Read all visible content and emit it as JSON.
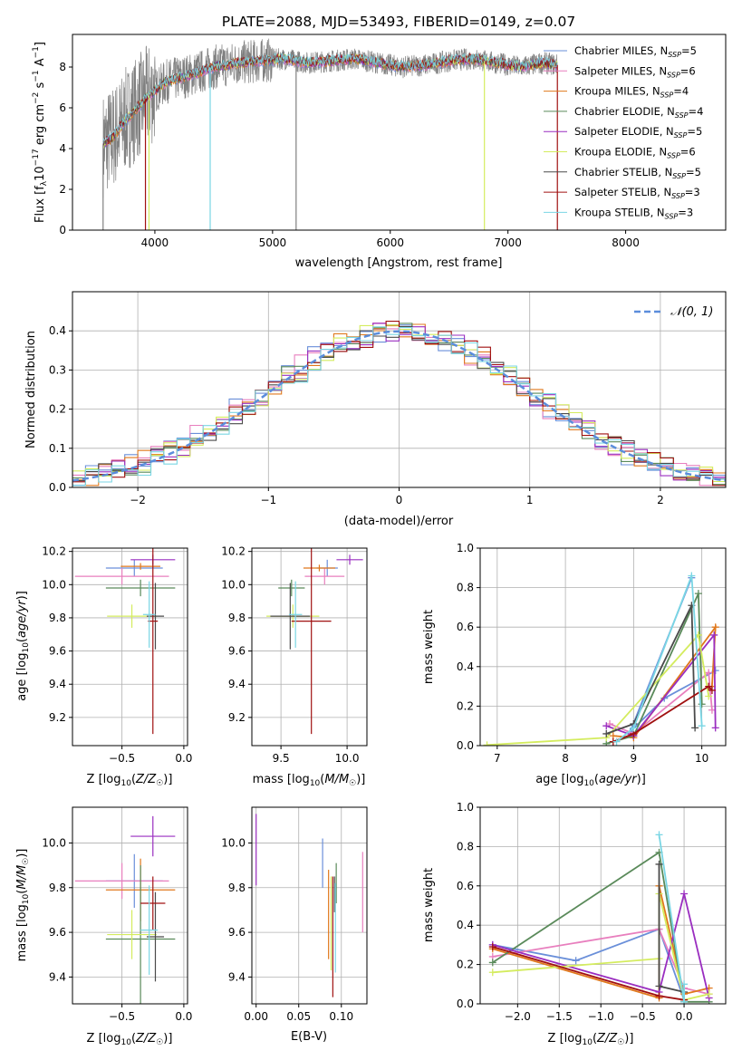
{
  "figure": {
    "title": "PLATE=2088, MJD=53493, FIBERID=0149, z=0.07"
  },
  "colors": {
    "Chabrier MILES": "#6a8fd9",
    "Salpeter MILES": "#e87fbe",
    "Kroupa MILES": "#e0781c",
    "Chabrier ELODIE": "#5a8a5a",
    "Salpeter ELODIE": "#9a2ec0",
    "Kroupa ELODIE": "#d4ec5e",
    "Chabrier STELIB": "#4a4a4a",
    "Salpeter STELIB": "#a01010",
    "Kroupa STELIB": "#7ad6e4",
    "data": "#808080",
    "normal_curve": "#5b8ddb",
    "grid": "#b0b0b0"
  },
  "chart_data": [
    {
      "id": "spectrum",
      "type": "line",
      "title": "PLATE=2088, MJD=53493, FIBERID=0149, z=0.07",
      "xlabel": "wavelength [Angstrom, rest frame]",
      "ylabel": "Flux [f_λ 10^-17 erg cm^-2 s^-1 A^-1]",
      "xlim": [
        3300,
        8850
      ],
      "ylim": [
        0,
        9.6
      ],
      "xticks": [
        4000,
        5000,
        6000,
        7000,
        8000
      ],
      "yticks": [
        0,
        2,
        4,
        6,
        8
      ],
      "grid": false,
      "legend_position": "top-right",
      "continuum": {
        "x": [
          3560,
          3650,
          3750,
          3850,
          3950,
          4100,
          4300,
          4500,
          4700,
          4900,
          5100,
          5300,
          5500,
          5700,
          5900,
          6100,
          6300,
          6500,
          6700,
          6900,
          7100,
          7300,
          7420
        ],
        "y": [
          4.2,
          4.6,
          5.4,
          6.0,
          6.6,
          7.3,
          7.6,
          8.0,
          8.2,
          8.3,
          8.4,
          8.2,
          8.3,
          8.4,
          8.2,
          8.0,
          8.1,
          8.3,
          8.4,
          8.2,
          8.0,
          8.2,
          8.1
        ]
      },
      "series": [
        {
          "name": "Chabrier MILES",
          "nssp": 5
        },
        {
          "name": "Salpeter MILES",
          "nssp": 6
        },
        {
          "name": "Kroupa MILES",
          "nssp": 4
        },
        {
          "name": "Chabrier ELODIE",
          "nssp": 4
        },
        {
          "name": "Salpeter ELODIE",
          "nssp": 5
        },
        {
          "name": "Kroupa ELODIE",
          "nssp": 6
        },
        {
          "name": "Chabrier STELIB",
          "nssp": 5
        },
        {
          "name": "Salpeter STELIB",
          "nssp": 3
        },
        {
          "name": "Kroupa STELIB",
          "nssp": 3
        }
      ],
      "dips": [
        {
          "x": 3560,
          "series": "data"
        },
        {
          "x": 3920,
          "series": "Salpeter STELIB"
        },
        {
          "x": 3950,
          "series": "Kroupa ELODIE"
        },
        {
          "x": 4470,
          "series": "Kroupa STELIB"
        },
        {
          "x": 5200,
          "series": "data"
        },
        {
          "x": 6800,
          "series": "Kroupa ELODIE"
        },
        {
          "x": 7420,
          "series": "Salpeter STELIB"
        }
      ]
    },
    {
      "id": "residuals",
      "type": "histogram",
      "xlabel": "(data-model)/error",
      "ylabel": "Normed distribution",
      "xlim": [
        -2.5,
        2.5
      ],
      "ylim": [
        0,
        0.5
      ],
      "xticks": [
        -2,
        -1,
        0,
        1,
        2
      ],
      "yticks": [
        0.0,
        0.1,
        0.2,
        0.3,
        0.4
      ],
      "grid": true,
      "bin_width": 0.1,
      "legend_position": "top-right",
      "curve_label": "N(0,1)"
    },
    {
      "id": "age-vs-Z",
      "type": "scatter",
      "xlabel": "Z [log10(Z/Z☉)]",
      "ylabel": "age  [log10(age/yr)]",
      "xlim": [
        -0.9,
        0.03
      ],
      "ylim": [
        9.03,
        10.22
      ],
      "xticks": [
        -0.5,
        0.0
      ],
      "yticks": [
        9.2,
        9.4,
        9.6,
        9.8,
        10.0,
        10.2
      ],
      "grid": true,
      "points": [
        {
          "series": "Chabrier MILES",
          "x": -0.4,
          "y": 10.1,
          "xerr": 0.23,
          "yerr": 0.05
        },
        {
          "series": "Salpeter MILES",
          "x": -0.5,
          "y": 10.05,
          "xerr": 0.38,
          "yerr": 0.05
        },
        {
          "series": "Kroupa MILES",
          "x": -0.35,
          "y": 10.11,
          "xerr": 0.16,
          "yerr": 0.02
        },
        {
          "series": "Chabrier ELODIE",
          "x": -0.35,
          "y": 9.98,
          "xerr": 0.28,
          "yerr": 0.05
        },
        {
          "series": "Salpeter ELODIE",
          "x": -0.25,
          "y": 10.15,
          "xerr": 0.18,
          "yerr": 0.03
        },
        {
          "series": "Kroupa ELODIE",
          "x": -0.42,
          "y": 9.81,
          "xerr": 0.2,
          "yerr": 0.07
        },
        {
          "series": "Chabrier STELIB",
          "x": -0.23,
          "y": 9.81,
          "xerr": 0.07,
          "yerr": 0.2
        },
        {
          "series": "Salpeter STELIB",
          "x": -0.25,
          "y": 9.78,
          "xerr": 0.04,
          "yerr": 0.68
        },
        {
          "series": "Kroupa STELIB",
          "x": -0.28,
          "y": 9.82,
          "xerr": 0.05,
          "yerr": 0.2
        }
      ]
    },
    {
      "id": "age-vs-mass",
      "type": "scatter",
      "xlabel": "mass [log10(M/M☉)]",
      "ylabel": "",
      "xlim": [
        9.28,
        10.15
      ],
      "ylim": [
        9.03,
        10.22
      ],
      "xticks": [
        9.5,
        10.0
      ],
      "yticks": [
        9.2,
        9.4,
        9.6,
        9.8,
        10.0,
        10.2
      ],
      "grid": true,
      "points": [
        {
          "series": "Chabrier MILES",
          "x": 9.85,
          "y": 10.1,
          "xerr": 0.08,
          "yerr": 0.05
        },
        {
          "series": "Salpeter MILES",
          "x": 9.83,
          "y": 10.05,
          "xerr": 0.15,
          "yerr": 0.05
        },
        {
          "series": "Kroupa MILES",
          "x": 9.79,
          "y": 10.1,
          "xerr": 0.12,
          "yerr": 0.02
        },
        {
          "series": "Chabrier ELODIE",
          "x": 9.58,
          "y": 9.98,
          "xerr": 0.1,
          "yerr": 0.05
        },
        {
          "series": "Salpeter ELODIE",
          "x": 10.02,
          "y": 10.15,
          "xerr": 0.1,
          "yerr": 0.03
        },
        {
          "series": "Kroupa ELODIE",
          "x": 9.59,
          "y": 9.81,
          "xerr": 0.2,
          "yerr": 0.07
        },
        {
          "series": "Chabrier STELIB",
          "x": 9.57,
          "y": 9.81,
          "xerr": 0.15,
          "yerr": 0.2
        },
        {
          "series": "Salpeter STELIB",
          "x": 9.73,
          "y": 9.78,
          "xerr": 0.15,
          "yerr": 0.68
        },
        {
          "series": "Kroupa STELIB",
          "x": 9.61,
          "y": 9.82,
          "xerr": 0.05,
          "yerr": 0.2
        }
      ]
    },
    {
      "id": "weight-vs-age",
      "type": "line",
      "xlabel": "age  [log10(age/yr)]",
      "ylabel": "mass weight",
      "xlim": [
        6.75,
        10.35
      ],
      "ylim": [
        0,
        1.0
      ],
      "xticks": [
        7,
        8,
        9,
        10
      ],
      "yticks": [
        0.0,
        0.2,
        0.4,
        0.6,
        0.8,
        1.0
      ],
      "grid": true,
      "series": [
        {
          "name": "Chabrier MILES",
          "x": [
            9.85,
            8.95,
            9.45,
            10.2
          ],
          "y": [
            0.85,
            0.07,
            0.24,
            0.38
          ]
        },
        {
          "name": "Salpeter MILES",
          "x": [
            8.65,
            9.0,
            10.1,
            10.15
          ],
          "y": [
            0.11,
            0.06,
            0.37,
            0.18
          ]
        },
        {
          "name": "Kroupa MILES",
          "x": [
            8.7,
            9.0,
            10.2,
            10.15
          ],
          "y": [
            0.05,
            0.04,
            0.6,
            0.3
          ]
        },
        {
          "name": "Chabrier ELODIE",
          "x": [
            8.6,
            9.0,
            9.95,
            10.0
          ],
          "y": [
            0.01,
            0.05,
            0.77,
            0.21
          ]
        },
        {
          "name": "Salpeter ELODIE",
          "x": [
            8.6,
            9.0,
            10.18,
            10.2
          ],
          "y": [
            0.1,
            0.05,
            0.56,
            0.09
          ]
        },
        {
          "name": "Kroupa ELODIE",
          "x": [
            6.85,
            8.6,
            9.95,
            10.1
          ],
          "y": [
            0.003,
            0.04,
            0.56,
            0.25
          ]
        },
        {
          "name": "Chabrier STELIB",
          "x": [
            8.6,
            9.0,
            9.85,
            9.9
          ],
          "y": [
            0.06,
            0.11,
            0.71,
            0.09
          ]
        },
        {
          "name": "Salpeter STELIB",
          "x": [
            8.7,
            9.0,
            10.1,
            10.15
          ],
          "y": [
            0.02,
            0.06,
            0.3,
            0.28
          ]
        },
        {
          "name": "Kroupa STELIB",
          "x": [
            8.75,
            9.0,
            9.85,
            10.0
          ],
          "y": [
            0.02,
            0.09,
            0.86,
            0.1
          ]
        }
      ]
    },
    {
      "id": "mass-vs-Z",
      "type": "scatter",
      "xlabel": "Z [log10(Z/Z☉)]",
      "ylabel": "mass [log10(M/M☉)]",
      "xlim": [
        -0.9,
        0.03
      ],
      "ylim": [
        9.28,
        10.16
      ],
      "xticks": [
        -0.5,
        0.0
      ],
      "yticks": [
        9.4,
        9.6,
        9.8,
        10.0
      ],
      "grid": true,
      "points": [
        {
          "series": "Chabrier MILES",
          "x": -0.4,
          "y": 9.83,
          "xerr": 0.23,
          "yerr": 0.12
        },
        {
          "series": "Salpeter MILES",
          "x": -0.5,
          "y": 9.83,
          "xerr": 0.38,
          "yerr": 0.08
        },
        {
          "series": "Kroupa MILES",
          "x": -0.35,
          "y": 9.79,
          "xerr": 0.28,
          "yerr": 0.14
        },
        {
          "series": "Chabrier ELODIE",
          "x": -0.35,
          "y": 9.57,
          "xerr": 0.28,
          "yerr": 0.33
        },
        {
          "series": "Salpeter ELODIE",
          "x": -0.25,
          "y": 10.03,
          "xerr": 0.18,
          "yerr": 0.09
        },
        {
          "series": "Kroupa ELODIE",
          "x": -0.42,
          "y": 9.59,
          "xerr": 0.2,
          "yerr": 0.11
        },
        {
          "series": "Chabrier STELIB",
          "x": -0.23,
          "y": 9.58,
          "xerr": 0.07,
          "yerr": 0.2
        },
        {
          "series": "Salpeter STELIB",
          "x": -0.25,
          "y": 9.73,
          "xerr": 0.1,
          "yerr": 0.12
        },
        {
          "series": "Kroupa STELIB",
          "x": -0.28,
          "y": 9.61,
          "xerr": 0.07,
          "yerr": 0.2
        }
      ]
    },
    {
      "id": "mass-vs-ebv",
      "type": "scatter",
      "xlabel": "E(B-V)",
      "ylabel": "",
      "xlim": [
        -0.005,
        0.13
      ],
      "ylim": [
        9.28,
        10.16
      ],
      "xticks": [
        0.0,
        0.05,
        0.1
      ],
      "yticks": [
        9.4,
        9.6,
        9.8,
        10.0
      ],
      "grid": true,
      "points": [
        {
          "series": "Chabrier MILES",
          "x": 0.078,
          "y": 9.91,
          "yerr": 0.11
        },
        {
          "series": "Salpeter MILES",
          "x": 0.125,
          "y": 9.78,
          "yerr": 0.18
        },
        {
          "series": "Kroupa MILES",
          "x": 0.085,
          "y": 9.68,
          "yerr": 0.2
        },
        {
          "series": "Chabrier ELODIE",
          "x": 0.094,
          "y": 9.82,
          "yerr": 0.09
        },
        {
          "series": "Salpeter ELODIE",
          "x": 0.0,
          "y": 9.97,
          "yerr": 0.16
        },
        {
          "series": "Kroupa ELODIE",
          "x": 0.088,
          "y": 9.64,
          "yerr": 0.21
        },
        {
          "series": "Chabrier STELIB",
          "x": 0.092,
          "y": 9.77,
          "yerr": 0.08
        },
        {
          "series": "Salpeter STELIB",
          "x": 0.09,
          "y": 9.58,
          "yerr": 0.27
        },
        {
          "series": "Kroupa STELIB",
          "x": 0.093,
          "y": 9.62,
          "yerr": 0.2
        }
      ]
    },
    {
      "id": "weight-vs-Z",
      "type": "line",
      "xlabel": "Z [log10(Z/Z☉)]",
      "ylabel": "mass weight",
      "xlim": [
        -2.45,
        0.5
      ],
      "ylim": [
        0,
        1.0
      ],
      "xticks": [
        -2.0,
        -1.5,
        -1.0,
        -0.5,
        0.0
      ],
      "yticks": [
        0.0,
        0.2,
        0.4,
        0.6,
        0.8,
        1.0
      ],
      "grid": true,
      "series": [
        {
          "name": "Chabrier MILES",
          "x": [
            -2.3,
            -1.3,
            -0.3,
            0.0
          ],
          "y": [
            0.3,
            0.22,
            0.38,
            0.02
          ]
        },
        {
          "name": "Salpeter MILES",
          "x": [
            -2.3,
            -0.3,
            0.0,
            0.3
          ],
          "y": [
            0.24,
            0.38,
            0.08,
            0.05
          ]
        },
        {
          "name": "Kroupa MILES",
          "x": [
            -2.3,
            -0.3,
            -0.3,
            0.0,
            0.3
          ],
          "y": [
            0.28,
            0.03,
            0.6,
            0.05,
            0.08
          ]
        },
        {
          "name": "Chabrier ELODIE",
          "x": [
            -2.3,
            -0.3,
            0.0,
            0.3
          ],
          "y": [
            0.21,
            0.77,
            0.01,
            0.01
          ]
        },
        {
          "name": "Salpeter ELODIE",
          "x": [
            -2.3,
            -0.3,
            0.0,
            0.3
          ],
          "y": [
            0.3,
            0.06,
            0.56,
            0.03
          ]
        },
        {
          "name": "Kroupa ELODIE",
          "x": [
            -2.3,
            -0.3,
            -0.3,
            0.0,
            0.3
          ],
          "y": [
            0.16,
            0.23,
            0.56,
            0.02,
            0.05
          ]
        },
        {
          "name": "Chabrier STELIB",
          "x": [
            -0.3,
            -0.3,
            0.0
          ],
          "y": [
            0.71,
            0.09,
            0.06
          ]
        },
        {
          "name": "Salpeter STELIB",
          "x": [
            -2.3,
            -0.3,
            0.0
          ],
          "y": [
            0.29,
            0.04,
            0.02
          ]
        },
        {
          "name": "Kroupa STELIB",
          "x": [
            -0.3,
            0.0,
            0.0
          ],
          "y": [
            0.86,
            0.01,
            0.1
          ]
        }
      ]
    }
  ]
}
